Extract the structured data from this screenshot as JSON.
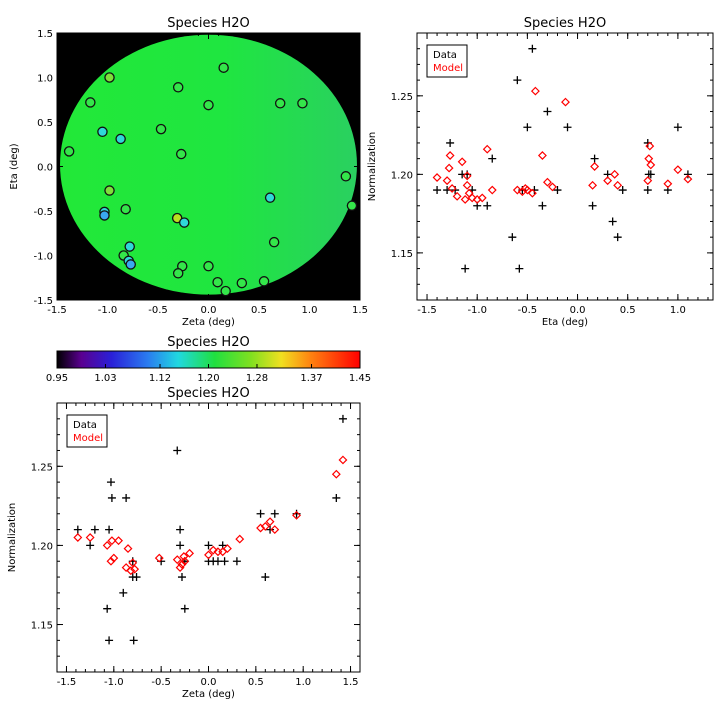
{
  "chart_data": [
    {
      "id": "map",
      "type": "heatmap",
      "title": "Species H2O",
      "xlabel": "Zeta (deg)",
      "ylabel": "Eta (deg)",
      "xlim": [
        -1.5,
        1.5
      ],
      "ylim": [
        -1.5,
        1.5
      ],
      "xticks": [
        "-1.5",
        "-1.0",
        "-0.5",
        "0.0",
        "0.5",
        "1.0",
        "1.5"
      ],
      "yticks": [
        "-1.5",
        "-1.0",
        "-0.5",
        "0.0",
        "0.5",
        "1.0",
        "1.5"
      ],
      "background_color": "#000000",
      "field_color": "#20e836",
      "points": [
        {
          "x": -1.38,
          "y": 0.17,
          "c": "#34e64a"
        },
        {
          "x": -1.17,
          "y": 0.72,
          "c": "#34e64a"
        },
        {
          "x": -1.05,
          "y": 0.39,
          "c": "#2fd8d8"
        },
        {
          "x": -0.98,
          "y": 1.0,
          "c": "#7ee03a"
        },
        {
          "x": -0.87,
          "y": 0.31,
          "c": "#2fd8d8"
        },
        {
          "x": -0.98,
          "y": -0.27,
          "c": "#7ee03a"
        },
        {
          "x": -1.03,
          "y": -0.51,
          "c": "#2fd8d8"
        },
        {
          "x": -1.03,
          "y": -0.55,
          "c": "#3aa8f0"
        },
        {
          "x": -0.82,
          "y": -0.48,
          "c": "#34e64a"
        },
        {
          "x": -0.78,
          "y": -0.9,
          "c": "#2fd8d8"
        },
        {
          "x": -0.84,
          "y": -1.0,
          "c": "#34e64a"
        },
        {
          "x": -0.79,
          "y": -1.06,
          "c": "#2fd8d8"
        },
        {
          "x": -0.77,
          "y": -1.1,
          "c": "#3aa8f0"
        },
        {
          "x": -0.47,
          "y": 0.42,
          "c": "#34e64a"
        },
        {
          "x": -0.3,
          "y": 0.89,
          "c": "#34e64a"
        },
        {
          "x": -0.27,
          "y": 0.14,
          "c": "#34e64a"
        },
        {
          "x": -0.31,
          "y": -0.58,
          "c": "#b8e020"
        },
        {
          "x": -0.24,
          "y": -0.63,
          "c": "#2fd8d8"
        },
        {
          "x": -0.26,
          "y": -1.12,
          "c": "#34e64a"
        },
        {
          "x": -0.3,
          "y": -1.2,
          "c": "#34e64a"
        },
        {
          "x": 0.0,
          "y": 0.69,
          "c": "#34e64a"
        },
        {
          "x": 0.15,
          "y": 1.11,
          "c": "#34e64a"
        },
        {
          "x": 0.0,
          "y": -1.12,
          "c": "#34e64a"
        },
        {
          "x": 0.09,
          "y": -1.3,
          "c": "#34e64a"
        },
        {
          "x": 0.17,
          "y": -1.4,
          "c": "#34e64a"
        },
        {
          "x": 0.33,
          "y": -1.31,
          "c": "#34e64a"
        },
        {
          "x": 0.55,
          "y": -1.29,
          "c": "#34e64a"
        },
        {
          "x": 0.61,
          "y": -0.35,
          "c": "#2fd8d8"
        },
        {
          "x": 0.65,
          "y": -0.85,
          "c": "#34e64a"
        },
        {
          "x": 0.71,
          "y": 0.71,
          "c": "#34e64a"
        },
        {
          "x": 0.93,
          "y": 0.71,
          "c": "#34e64a"
        },
        {
          "x": 1.36,
          "y": -0.11,
          "c": "#34e64a"
        },
        {
          "x": 1.42,
          "y": -0.44,
          "c": "#34e64a"
        }
      ]
    },
    {
      "id": "eta",
      "type": "scatter",
      "title": "Species H2O",
      "xlabel": "Eta (deg)",
      "ylabel": "Normalization",
      "xlim": [
        -1.6,
        1.35
      ],
      "ylim": [
        1.12,
        1.29
      ],
      "xticks": [
        "-1.5",
        "-1.0",
        "-0.5",
        "0.0",
        "0.5",
        "1.0"
      ],
      "yticks": [
        "1.15",
        "1.20",
        "1.25"
      ],
      "legend": [
        "Data",
        "Model"
      ],
      "legend_position": "top-left",
      "series": [
        {
          "name": "Data",
          "marker": "+",
          "color": "#000000",
          "x": [
            -1.4,
            -1.3,
            -1.27,
            -1.22,
            -1.15,
            -1.12,
            -1.1,
            -1.05,
            -1.0,
            -0.9,
            -0.85,
            -0.65,
            -0.6,
            -0.58,
            -0.55,
            -0.5,
            -0.45,
            -0.43,
            -0.35,
            -0.3,
            -0.2,
            -0.1,
            0.15,
            0.17,
            0.3,
            0.35,
            0.4,
            0.45,
            0.7,
            0.7,
            0.71,
            0.73,
            0.9,
            1.0,
            1.1
          ],
          "y": [
            1.19,
            1.19,
            1.22,
            1.19,
            1.2,
            1.14,
            1.2,
            1.19,
            1.18,
            1.18,
            1.21,
            1.16,
            1.26,
            1.14,
            1.19,
            1.23,
            1.28,
            1.19,
            1.18,
            1.24,
            1.19,
            1.23,
            1.18,
            1.21,
            1.2,
            1.17,
            1.16,
            1.19,
            1.19,
            1.22,
            1.2,
            1.2,
            1.19,
            1.23,
            1.2
          ]
        },
        {
          "name": "Model",
          "marker": "diamond",
          "color": "#ff0000",
          "x": [
            -1.4,
            -1.3,
            -1.28,
            -1.27,
            -1.25,
            -1.2,
            -1.15,
            -1.12,
            -1.1,
            -1.1,
            -1.08,
            -1.05,
            -1.0,
            -0.95,
            -0.9,
            -0.85,
            -0.6,
            -0.55,
            -0.52,
            -0.5,
            -0.45,
            -0.42,
            -0.35,
            -0.3,
            -0.25,
            -0.12,
            0.15,
            0.17,
            0.3,
            0.37,
            0.4,
            0.7,
            0.71,
            0.72,
            0.73,
            0.9,
            1.0,
            1.1
          ],
          "y": [
            1.198,
            1.196,
            1.204,
            1.212,
            1.191,
            1.186,
            1.208,
            1.184,
            1.193,
            1.199,
            1.188,
            1.185,
            1.184,
            1.185,
            1.216,
            1.19,
            1.19,
            1.189,
            1.191,
            1.19,
            1.188,
            1.253,
            1.212,
            1.195,
            1.192,
            1.246,
            1.193,
            1.205,
            1.196,
            1.2,
            1.193,
            1.196,
            1.21,
            1.218,
            1.206,
            1.194,
            1.203,
            1.197
          ]
        }
      ]
    },
    {
      "id": "colorbar",
      "type": "heatmap",
      "title": "Species H2O",
      "tick_labels": [
        "0.95",
        "1.03",
        "1.12",
        "1.20",
        "1.28",
        "1.37",
        "1.45"
      ],
      "range": [
        0.95,
        1.45
      ],
      "colormap": "rainbow"
    },
    {
      "id": "zeta",
      "type": "scatter",
      "title": "Species H2O",
      "xlabel": "Zeta (deg)",
      "ylabel": "Normalization",
      "xlim": [
        -1.6,
        1.6
      ],
      "ylim": [
        1.12,
        1.29
      ],
      "xticks": [
        "-1.5",
        "-1.0",
        "-0.5",
        "0.0",
        "0.5",
        "1.0",
        "1.5"
      ],
      "yticks": [
        "1.15",
        "1.20",
        "1.25"
      ],
      "legend": [
        "Data",
        "Model"
      ],
      "legend_position": "top-left",
      "series": [
        {
          "name": "Data",
          "marker": "+",
          "color": "#000000",
          "x": [
            -1.38,
            -1.25,
            -1.2,
            -1.07,
            -1.05,
            -1.05,
            -1.03,
            -1.02,
            -0.9,
            -0.87,
            -0.8,
            -0.8,
            -0.79,
            -0.76,
            -0.5,
            -0.33,
            -0.3,
            -0.3,
            -0.28,
            -0.25,
            -0.25,
            0.0,
            0.0,
            0.05,
            0.1,
            0.15,
            0.17,
            0.3,
            0.55,
            0.6,
            0.65,
            0.7,
            0.93,
            1.35,
            1.42
          ],
          "y": [
            1.21,
            1.2,
            1.21,
            1.16,
            1.14,
            1.21,
            1.24,
            1.23,
            1.17,
            1.23,
            1.18,
            1.19,
            1.14,
            1.18,
            1.19,
            1.26,
            1.21,
            1.2,
            1.18,
            1.19,
            1.16,
            1.2,
            1.19,
            1.19,
            1.19,
            1.2,
            1.19,
            1.19,
            1.22,
            1.18,
            1.21,
            1.22,
            1.22,
            1.23,
            1.28
          ]
        },
        {
          "name": "Model",
          "marker": "diamond",
          "color": "#ff0000",
          "x": [
            -1.38,
            -1.25,
            -1.07,
            -1.03,
            -1.02,
            -1.0,
            -0.95,
            -0.87,
            -0.85,
            -0.82,
            -0.8,
            -0.78,
            -0.52,
            -0.33,
            -0.3,
            -0.28,
            -0.26,
            -0.25,
            -0.2,
            0.0,
            0.05,
            0.1,
            0.15,
            0.2,
            0.33,
            0.55,
            0.6,
            0.65,
            0.7,
            0.93,
            1.35,
            1.42
          ],
          "y": [
            1.205,
            1.205,
            1.2,
            1.19,
            1.203,
            1.192,
            1.203,
            1.186,
            1.198,
            1.184,
            1.189,
            1.185,
            1.192,
            1.191,
            1.186,
            1.188,
            1.193,
            1.19,
            1.195,
            1.194,
            1.197,
            1.196,
            1.196,
            1.198,
            1.204,
            1.211,
            1.212,
            1.215,
            1.21,
            1.219,
            1.245,
            1.254
          ]
        }
      ]
    }
  ]
}
